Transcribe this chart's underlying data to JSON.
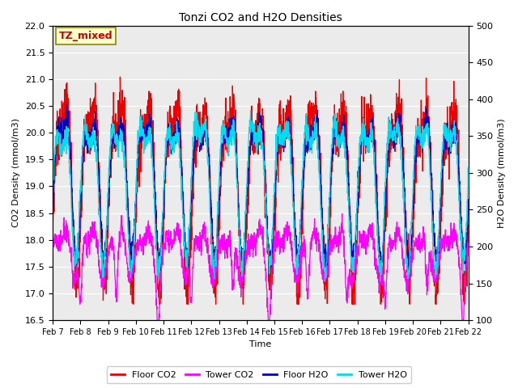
{
  "title": "Tonzi CO2 and H2O Densities",
  "xlabel": "Time",
  "ylabel_left": "CO2 Density (mmol/m3)",
  "ylabel_right": "H2O Density (mmol/m3)",
  "ylim_left": [
    16.5,
    22.0
  ],
  "ylim_right": [
    100,
    500
  ],
  "annotation_text": "TZ_mixed",
  "annotation_color": "#cc0000",
  "annotation_bg": "#ffffcc",
  "bg_color": "#ebebeb",
  "colors": {
    "floor_co2": "#ee0000",
    "tower_co2": "#ff00ff",
    "floor_h2o": "#0000bb",
    "tower_h2o": "#00ddee"
  },
  "legend_labels": [
    "Floor CO2",
    "Tower CO2",
    "Floor H2O",
    "Tower H2O"
  ],
  "xtick_labels": [
    "Feb 7",
    "Feb 8",
    "Feb 9",
    "Feb 10",
    "Feb 11",
    "Feb 12",
    "Feb 13",
    "Feb 14",
    "Feb 15",
    "Feb 16",
    "Feb 17",
    "Feb 18",
    "Feb 19",
    "Feb 20",
    "Feb 21",
    "Feb 22"
  ],
  "yticks_left": [
    16.5,
    17.0,
    17.5,
    18.0,
    18.5,
    19.0,
    19.5,
    20.0,
    20.5,
    21.0,
    21.5,
    22.0
  ],
  "yticks_right": [
    100,
    150,
    200,
    250,
    300,
    350,
    400,
    450,
    500
  ],
  "num_points": 2160,
  "seed": 7
}
